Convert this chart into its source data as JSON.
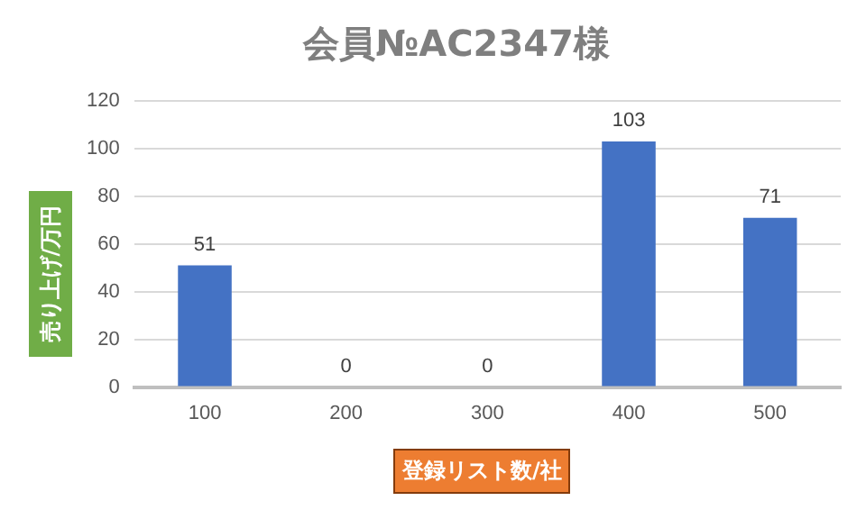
{
  "chart_data": {
    "type": "bar",
    "title": "会員№AC2347様",
    "xlabel": "登録リスト数/社",
    "ylabel": "売り上げ/万円",
    "categories": [
      "100",
      "200",
      "300",
      "400",
      "500"
    ],
    "values": [
      51,
      0,
      0,
      103,
      71
    ],
    "color": "#4472c4",
    "ylim": [
      0,
      120
    ],
    "yticks": [
      0,
      20,
      40,
      60,
      80,
      100,
      120
    ],
    "grid": "y",
    "data_labels": true
  }
}
